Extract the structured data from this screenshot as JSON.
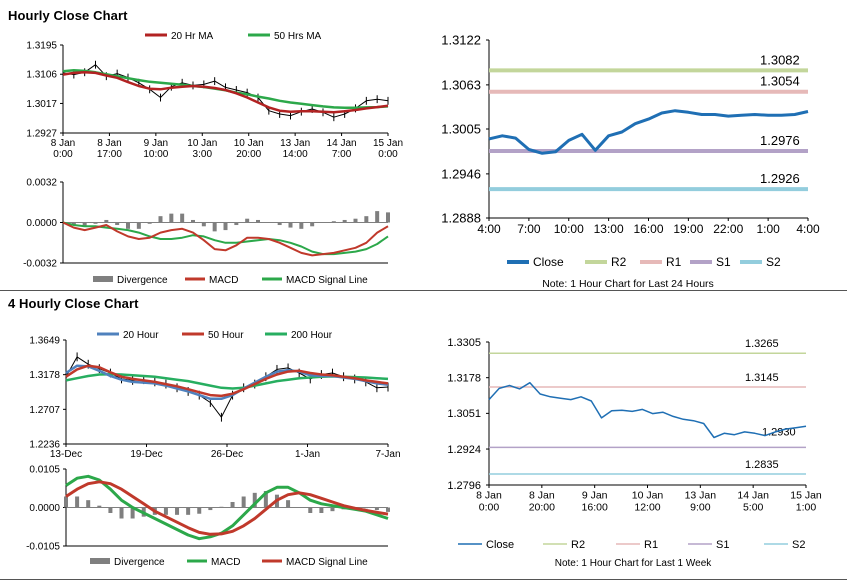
{
  "colors": {
    "close_blue": "#1f6fb4",
    "ma20_red": "#b22222",
    "ma50_green": "#2ca84a",
    "ma20h_blue": "#4f81bd",
    "ma50h_red": "#c0392b",
    "ma200h_green": "#27ae60",
    "macd_red": "#c0392b",
    "signal_green": "#2ca84a",
    "divergence_gray": "#7f7f7f",
    "r2": "#c3d69b",
    "r1": "#e6b9b8",
    "s1": "#b3a2c7",
    "s2": "#93cddd",
    "axis": "#000000"
  },
  "sections": {
    "hourly_title": "Hourly Close Chart",
    "four_hourly_title": "4 Hourly Close Chart"
  },
  "chart_data": [
    {
      "id": "hourly_price_ma",
      "type": "line",
      "title": "",
      "legend": [
        "20 Hr MA",
        "50 Hrs MA"
      ],
      "yticks": [
        "1.3195",
        "1.3106",
        "1.3017",
        "1.2927"
      ],
      "ylim": [
        1.2927,
        1.3195
      ],
      "xticks": [
        [
          "8 Jan",
          "0:00"
        ],
        [
          "8 Jan",
          "17:00"
        ],
        [
          "9 Jan",
          "10:00"
        ],
        [
          "10 Jan",
          "3:00"
        ],
        [
          "10 Jan",
          "20:00"
        ],
        [
          "13 Jan",
          "14:00"
        ],
        [
          "14 Jan",
          "7:00"
        ],
        [
          "15 Jan",
          "0:00"
        ]
      ],
      "close": [
        1.311,
        1.3105,
        1.3112,
        1.3135,
        1.31,
        1.3108,
        1.3096,
        1.308,
        1.306,
        1.3035,
        1.3068,
        1.308,
        1.3072,
        1.3075,
        1.3085,
        1.3066,
        1.3058,
        1.305,
        1.3035,
        1.2995,
        1.2985,
        1.298,
        1.2992,
        1.3,
        1.299,
        1.2975,
        1.2985,
        1.3002,
        1.3025,
        1.303,
        1.3025
      ],
      "ma20": [
        1.3105,
        1.311,
        1.3112,
        1.311,
        1.3102,
        1.3095,
        1.3082,
        1.307,
        1.3062,
        1.306,
        1.3065,
        1.3068,
        1.307,
        1.3068,
        1.3064,
        1.3058,
        1.3048,
        1.3035,
        1.302,
        1.3005,
        1.2995,
        1.2992,
        1.2993,
        1.2993,
        1.2992,
        1.299,
        1.2993,
        1.2997,
        1.3002,
        1.3006,
        1.301
      ],
      "ma50": [
        1.3115,
        1.3118,
        1.3116,
        1.3112,
        1.3106,
        1.31,
        1.3094,
        1.3088,
        1.3083,
        1.308,
        1.3077,
        1.3074,
        1.307,
        1.3067,
        1.3062,
        1.3057,
        1.305,
        1.3045,
        1.3038,
        1.3032,
        1.3025,
        1.302,
        1.3016,
        1.3012,
        1.3008,
        1.3005,
        1.3004,
        1.3004,
        1.3005,
        1.3006,
        1.3008
      ]
    },
    {
      "id": "hourly_macd",
      "type": "line",
      "legend": [
        "Divergence",
        "MACD",
        "MACD Signal Line"
      ],
      "yticks": [
        "0.0032",
        "0.0000",
        "-0.0032"
      ],
      "ylim": [
        -0.0032,
        0.0032
      ],
      "macd": [
        0.0,
        -0.0004,
        -0.0006,
        -0.0004,
        -0.0002,
        -0.0007,
        -0.0011,
        -0.0013,
        -0.0012,
        -0.0008,
        -0.0006,
        -0.0005,
        -0.0008,
        -0.0014,
        -0.0021,
        -0.0022,
        -0.0018,
        -0.0012,
        -0.0012,
        -0.0013,
        -0.0016,
        -0.002,
        -0.0024,
        -0.0026,
        -0.0025,
        -0.0024,
        -0.0022,
        -0.002,
        -0.0016,
        -0.0008,
        -0.0003
      ],
      "signal": [
        0.0,
        -0.0002,
        -0.0003,
        -0.0003,
        -0.0004,
        -0.0005,
        -0.0006,
        -0.0008,
        -0.0011,
        -0.0013,
        -0.0013,
        -0.0012,
        -0.001,
        -0.0011,
        -0.0014,
        -0.0016,
        -0.0016,
        -0.0015,
        -0.0014,
        -0.0013,
        -0.0014,
        -0.0016,
        -0.0019,
        -0.0023,
        -0.0025,
        -0.0025,
        -0.0024,
        -0.0023,
        -0.0021,
        -0.0017,
        -0.0011
      ],
      "divergence": [
        0.0,
        -0.0002,
        -0.0003,
        -0.0001,
        0.0002,
        -0.0002,
        -0.0005,
        -0.0005,
        -0.0001,
        0.0005,
        0.0007,
        0.0007,
        0.0002,
        -0.0003,
        -0.0007,
        -0.0006,
        -0.0002,
        0.0003,
        0.0002,
        0.0,
        -0.0002,
        -0.0004,
        -0.0005,
        -0.0003,
        0.0,
        0.0001,
        0.0002,
        0.0003,
        0.0005,
        0.0009,
        0.0008
      ]
    },
    {
      "id": "hourly_24h",
      "type": "line",
      "note": "Note: 1 Hour Chart for Last 24 Hours",
      "legend": [
        "Close",
        "R2",
        "R1",
        "S1",
        "S2"
      ],
      "yticks": [
        "1.3122",
        "1.3063",
        "1.3005",
        "1.2946",
        "1.2888"
      ],
      "ylim": [
        1.2888,
        1.3122
      ],
      "xticks": [
        "4:00",
        "7:00",
        "10:00",
        "13:00",
        "16:00",
        "19:00",
        "22:00",
        "1:00",
        "4:00"
      ],
      "close": [
        1.2992,
        1.2996,
        1.2993,
        1.2978,
        1.2973,
        1.2975,
        1.299,
        1.2998,
        1.2977,
        1.2996,
        1.3001,
        1.3012,
        1.3018,
        1.3026,
        1.3029,
        1.3027,
        1.3024,
        1.3024,
        1.3022,
        1.3023,
        1.3024,
        1.3023,
        1.3023,
        1.3024,
        1.3028
      ],
      "levels": {
        "R2": 1.3082,
        "R1": 1.3054,
        "S1": 1.2976,
        "S2": 1.2926
      },
      "level_labels": {
        "R2": "1.3082",
        "R1": "1.3054",
        "S1": "1.2976",
        "S2": "1.2926"
      }
    },
    {
      "id": "four_hourly_price_ma",
      "type": "line",
      "legend": [
        "20 Hour",
        "50 Hour",
        "200 Hour"
      ],
      "yticks": [
        "1.3649",
        "1.3178",
        "1.2707",
        "1.2236"
      ],
      "ylim": [
        1.2236,
        1.3649
      ],
      "xticks": [
        "13-Dec",
        "19-Dec",
        "26-Dec",
        "1-Jan",
        "7-Jan"
      ],
      "close": [
        1.315,
        1.342,
        1.332,
        1.326,
        1.32,
        1.312,
        1.31,
        1.311,
        1.308,
        1.305,
        1.3,
        1.295,
        1.29,
        1.28,
        1.26,
        1.29,
        1.3,
        1.305,
        1.315,
        1.325,
        1.327,
        1.32,
        1.312,
        1.318,
        1.32,
        1.315,
        1.312,
        1.308,
        1.3,
        1.301
      ],
      "ma20": [
        1.32,
        1.33,
        1.329,
        1.323,
        1.316,
        1.311,
        1.308,
        1.307,
        1.306,
        1.303,
        1.299,
        1.295,
        1.29,
        1.285,
        1.285,
        1.29,
        1.299,
        1.307,
        1.315,
        1.322,
        1.324,
        1.322,
        1.317,
        1.316,
        1.316,
        1.314,
        1.312,
        1.309,
        1.306,
        1.304
      ],
      "ma50": [
        1.315,
        1.325,
        1.33,
        1.328,
        1.321,
        1.315,
        1.312,
        1.31,
        1.308,
        1.305,
        1.302,
        1.298,
        1.294,
        1.29,
        1.289,
        1.292,
        1.298,
        1.305,
        1.312,
        1.318,
        1.322,
        1.323,
        1.32,
        1.318,
        1.317,
        1.315,
        1.313,
        1.31,
        1.308,
        1.306
      ],
      "ma200": [
        1.31,
        1.313,
        1.316,
        1.318,
        1.3185,
        1.318,
        1.317,
        1.316,
        1.315,
        1.313,
        1.311,
        1.309,
        1.306,
        1.303,
        1.3,
        1.299,
        1.3,
        1.303,
        1.306,
        1.309,
        1.311,
        1.313,
        1.314,
        1.315,
        1.3155,
        1.315,
        1.3145,
        1.314,
        1.313,
        1.312
      ]
    },
    {
      "id": "four_hourly_macd",
      "type": "line",
      "legend": [
        "Divergence",
        "MACD",
        "MACD Signal Line"
      ],
      "yticks": [
        "0.0105",
        "0.0000",
        "-0.0105"
      ],
      "ylim": [
        -0.0105,
        0.0105
      ],
      "macd": [
        0.006,
        0.008,
        0.0085,
        0.0075,
        0.005,
        0.002,
        0.0,
        -0.0015,
        -0.003,
        -0.0045,
        -0.006,
        -0.0075,
        -0.0085,
        -0.008,
        -0.007,
        -0.005,
        -0.002,
        0.001,
        0.004,
        0.0055,
        0.0055,
        0.004,
        0.002,
        0.001,
        0.0005,
        0.0,
        -0.0005,
        -0.001,
        -0.002,
        -0.003
      ],
      "signal": [
        0.003,
        0.005,
        0.0065,
        0.007,
        0.0065,
        0.005,
        0.003,
        0.001,
        -0.001,
        -0.0025,
        -0.004,
        -0.0055,
        -0.0068,
        -0.0073,
        -0.0072,
        -0.0065,
        -0.005,
        -0.003,
        -0.0005,
        0.002,
        0.0035,
        0.004,
        0.0035,
        0.0025,
        0.0015,
        0.0005,
        -0.0002,
        -0.0008,
        -0.0013,
        -0.0018
      ],
      "divergence": [
        0.003,
        0.003,
        0.002,
        0.0005,
        -0.0015,
        -0.003,
        -0.003,
        -0.0025,
        -0.002,
        -0.002,
        -0.002,
        -0.002,
        -0.0017,
        -0.0007,
        0.0002,
        0.0015,
        0.003,
        0.004,
        0.0045,
        0.0035,
        0.002,
        0.0,
        -0.0015,
        -0.0015,
        -0.001,
        -0.0005,
        -0.0003,
        -0.0002,
        -0.0007,
        -0.0012
      ]
    },
    {
      "id": "hourly_week",
      "type": "line",
      "note": "Note: 1 Hour Chart for Last 1 Week",
      "legend": [
        "Close",
        "R2",
        "R1",
        "S1",
        "S2"
      ],
      "yticks": [
        "1.3305",
        "1.3178",
        "1.3051",
        "1.2924",
        "1.2796"
      ],
      "ylim": [
        1.2796,
        1.3305
      ],
      "xticks": [
        [
          "8 Jan",
          "0:00"
        ],
        [
          "8 Jan",
          "20:00"
        ],
        [
          "9 Jan",
          "16:00"
        ],
        [
          "10 Jan",
          "12:00"
        ],
        [
          "13 Jan",
          "9:00"
        ],
        [
          "14 Jan",
          "5:00"
        ],
        [
          "15 Jan",
          "1:00"
        ]
      ],
      "close": [
        1.31,
        1.314,
        1.315,
        1.3138,
        1.316,
        1.312,
        1.311,
        1.3105,
        1.31,
        1.311,
        1.3095,
        1.3035,
        1.306,
        1.3062,
        1.3058,
        1.3065,
        1.305,
        1.3055,
        1.304,
        1.303,
        1.3025,
        1.3015,
        1.2965,
        1.298,
        1.2975,
        1.2985,
        1.298,
        1.2972,
        1.2985,
        1.2995,
        1.3,
        1.3005
      ],
      "levels": {
        "R2": 1.3265,
        "R1": 1.3145,
        "S1": 1.293,
        "S2": 1.2835
      },
      "level_labels": {
        "R2": "1.3265",
        "R1": "1.3145",
        "S1": "1.2930",
        "S2": "1.2835"
      }
    }
  ]
}
